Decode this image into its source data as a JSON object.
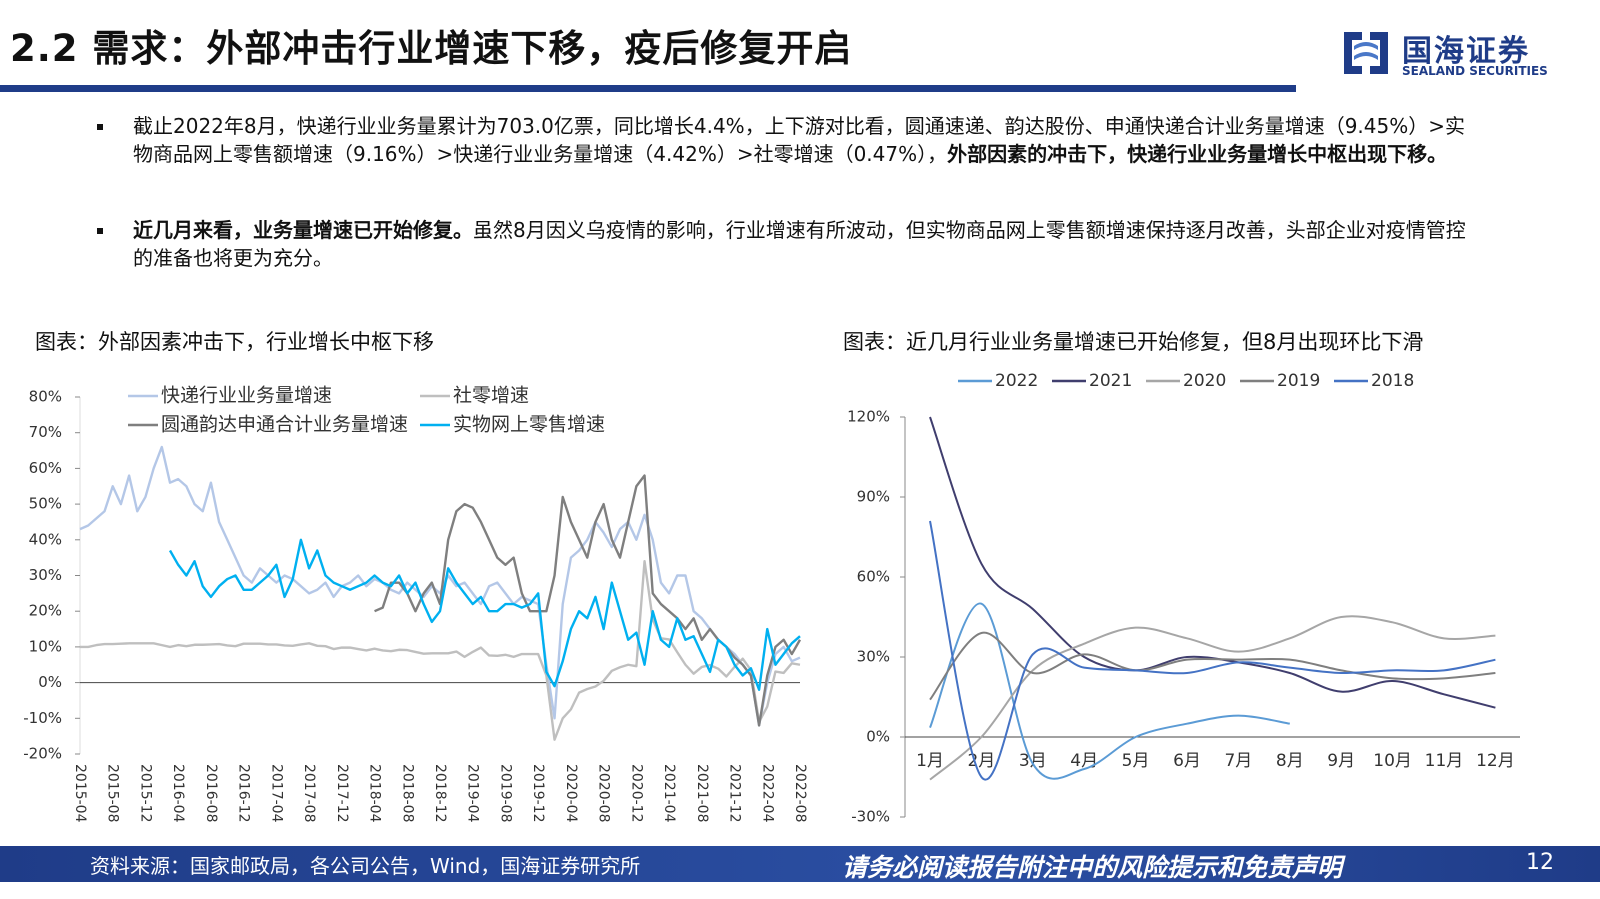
{
  "header": {
    "title": "2.2 需求：外部冲击行业增速下移，疫后修复开启",
    "logo_cn": "国海证券",
    "logo_en": "SEALAND SECURITIES"
  },
  "bullets": [
    [
      {
        "text": "截止2022年8月，快递行业业务量累计为703.0亿票，同比增长4.4%，上下游对比看，圆通速递、韵达股份、申通快递合计业务量增速（9.45%）>实物商品网上零售额增速（9.16%）>快递行业业务量增速（4.42%）>社零增速（0.47%），",
        "bold": false
      },
      {
        "text": "外部因素的冲击下，快递行业业务量增长中枢出现下移。",
        "bold": true
      }
    ],
    [
      {
        "text": "近几月来看，业务量增速已开始修复。",
        "bold": true
      },
      {
        "text": "虽然8月因义乌疫情的影响，行业增速有所波动，但实物商品网上零售额增速保持逐月改善，头部企业对疫情管控的准备也将更为充分。",
        "bold": false
      }
    ]
  ],
  "chart_data": [
    {
      "type": "line",
      "title": "图表：外部因素冲击下，行业增长中枢下移",
      "categories": [
        "2015-04",
        null,
        null,
        null,
        "2015-08",
        null,
        null,
        null,
        "2015-12",
        null,
        null,
        null,
        "2016-04",
        null,
        null,
        null,
        "2016-08",
        null,
        null,
        null,
        "2016-12",
        null,
        null,
        null,
        "2017-04",
        null,
        null,
        null,
        "2017-08",
        null,
        null,
        null,
        "2017-12",
        null,
        null,
        null,
        "2018-04",
        null,
        null,
        null,
        "2018-08",
        null,
        null,
        null,
        "2018-12",
        null,
        null,
        null,
        "2019-04",
        null,
        null,
        null,
        "2019-08",
        null,
        null,
        null,
        "2019-12",
        null,
        null,
        null,
        "2020-04",
        null,
        null,
        null,
        "2020-08",
        null,
        null,
        null,
        "2020-12",
        null,
        null,
        null,
        "2021-04",
        null,
        null,
        null,
        "2021-08",
        null,
        null,
        null,
        "2021-12",
        null,
        null,
        null,
        "2022-04",
        null,
        null,
        null,
        "2022-08"
      ],
      "ylim": [
        -20,
        80
      ],
      "yticks": [
        {
          "value": -20,
          "label": "-20%"
        },
        {
          "value": -10,
          "label": "-10%"
        },
        {
          "value": 0,
          "label": "0%"
        },
        {
          "value": 10,
          "label": "10%"
        },
        {
          "value": 20,
          "label": "20%"
        },
        {
          "value": 30,
          "label": "30%"
        },
        {
          "value": 40,
          "label": "40%"
        },
        {
          "value": 50,
          "label": "50%"
        },
        {
          "value": 60,
          "label": "60%"
        },
        {
          "value": 70,
          "label": "70%"
        },
        {
          "value": 80,
          "label": "80%"
        }
      ],
      "series": [
        {
          "name": "快递行业业务量增速",
          "color": "#b4c7e7",
          "values": [
            43,
            44,
            46,
            48,
            55,
            50,
            58,
            48,
            52,
            60,
            66,
            56,
            57,
            55,
            50,
            48,
            56,
            45,
            40,
            35,
            30,
            28,
            32,
            30,
            28,
            30,
            29,
            27,
            25,
            26,
            28,
            24,
            27,
            28,
            30,
            27,
            29,
            28,
            26,
            25,
            28,
            26,
            24,
            27,
            25,
            30,
            27,
            28,
            25,
            22,
            27,
            28,
            25,
            22,
            24,
            23,
            22,
            5,
            -10,
            22,
            35,
            37,
            40,
            45,
            42,
            38,
            43,
            45,
            40,
            47,
            40,
            28,
            25,
            30,
            30,
            20,
            18,
            15,
            12,
            10,
            8,
            5,
            2,
            -12,
            0,
            8,
            10,
            6,
            7
          ]
        },
        {
          "name": "社零增速",
          "color": "#bfbfbf",
          "values": [
            10,
            10,
            10.5,
            10.8,
            10.8,
            10.9,
            11,
            11,
            11,
            11,
            10.5,
            10,
            10.5,
            10.2,
            10.6,
            10.6,
            10.7,
            10.8,
            10.4,
            10.2,
            10.9,
            10.9,
            10.9,
            10.7,
            10.7,
            10.4,
            10.3,
            10.7,
            11,
            10.3,
            10.2,
            9.4,
            9.8,
            9.8,
            9.4,
            9,
            9.5,
            9,
            8.8,
            9.2,
            9.1,
            8.6,
            8.1,
            8.2,
            8.2,
            8.2,
            8.7,
            7.2,
            8.6,
            9.8,
            7.6,
            7.5,
            7.8,
            7.2,
            8,
            8,
            8,
            2,
            -16,
            -10,
            -7.5,
            -2.8,
            -1.8,
            -1.1,
            0.5,
            3.3,
            4.3,
            5,
            4.6,
            34,
            17.7,
            12.4,
            12.1,
            8.5,
            5,
            2.5,
            4.4,
            4.9,
            3.9,
            1.7,
            4.4,
            6.7,
            3.5,
            -11,
            -6.7,
            3.1,
            2.7,
            5.4,
            5
          ]
        },
        {
          "name": "圆通韵达申通合计业务量增速",
          "color": "#7f7f7f",
          "values": [
            null,
            null,
            null,
            null,
            null,
            null,
            null,
            null,
            null,
            null,
            null,
            null,
            null,
            null,
            null,
            null,
            null,
            null,
            null,
            null,
            null,
            null,
            null,
            null,
            null,
            null,
            null,
            null,
            null,
            null,
            null,
            null,
            null,
            null,
            null,
            null,
            20,
            21,
            28,
            28,
            25,
            20,
            25,
            28,
            22,
            40,
            48,
            50,
            49,
            45,
            40,
            35,
            33,
            35,
            25,
            20,
            20,
            20,
            30,
            52,
            45,
            40,
            35,
            45,
            50,
            40,
            35,
            45,
            55,
            58,
            25,
            22,
            20,
            18,
            15,
            18,
            12,
            15,
            12,
            10,
            7,
            5,
            2,
            -12,
            2,
            10,
            12,
            8,
            12
          ]
        },
        {
          "name": "实物网上零售增速",
          "color": "#00b0f0",
          "values": [
            null,
            null,
            null,
            null,
            null,
            null,
            null,
            null,
            null,
            null,
            null,
            37,
            33,
            30,
            34,
            27,
            24,
            27,
            29,
            30,
            26,
            26,
            28,
            30,
            33,
            24,
            29,
            40,
            32,
            37,
            30,
            28,
            27,
            26,
            27,
            28,
            30,
            28,
            27,
            30,
            25,
            28,
            22,
            17,
            20,
            32,
            28,
            25,
            22,
            24,
            20,
            20,
            22,
            22,
            21,
            22,
            25,
            3,
            -1,
            6,
            15,
            20,
            18,
            24,
            15,
            28,
            20,
            12,
            14,
            5,
            20,
            12,
            10,
            18,
            12,
            13,
            8,
            3,
            12,
            10,
            5,
            2,
            4,
            -2,
            15,
            5,
            8,
            11,
            13
          ]
        }
      ]
    },
    {
      "type": "line",
      "title": "图表：近几月行业业务量增速已开始修复，但8月出现环比下滑",
      "categories": [
        "1月",
        "2月",
        "3月",
        "4月",
        "5月",
        "6月",
        "7月",
        "8月",
        "9月",
        "10月",
        "11月",
        "12月"
      ],
      "ylim": [
        -30,
        120
      ],
      "yticks": [
        {
          "value": -30,
          "label": "-30%"
        },
        {
          "value": 0,
          "label": "0%"
        },
        {
          "value": 30,
          "label": "30%"
        },
        {
          "value": 60,
          "label": "60%"
        },
        {
          "value": 90,
          "label": "90%"
        },
        {
          "value": 120,
          "label": "120%"
        }
      ],
      "series": [
        {
          "name": "2022",
          "color": "#5b9bd5",
          "values": [
            3.5,
            50,
            -10,
            -12,
            0,
            5,
            8,
            5,
            null,
            null,
            null,
            null
          ]
        },
        {
          "name": "2021",
          "color": "#403e6e",
          "values": [
            120,
            65,
            48,
            30,
            25,
            30,
            28,
            24,
            17,
            21,
            16,
            11
          ]
        },
        {
          "name": "2020",
          "color": "#a6a6a6",
          "values": [
            -16,
            0,
            25,
            35,
            41,
            37,
            32,
            37,
            45,
            43,
            37,
            38
          ]
        },
        {
          "name": "2019",
          "color": "#7f7f7f",
          "values": [
            14,
            39,
            24,
            31,
            25,
            29,
            29,
            29,
            25,
            22,
            22,
            24
          ]
        },
        {
          "name": "2018",
          "color": "#4472c4",
          "values": [
            81,
            -15,
            31,
            26,
            25,
            24,
            28,
            26,
            24,
            25,
            25,
            29
          ]
        }
      ]
    }
  ],
  "footer": {
    "source": "资料来源：国家邮政局，各公司公告，Wind，国海证券研究所",
    "disclaimer": "请务必阅读报告附注中的风险提示和免责声明",
    "page": "12"
  }
}
